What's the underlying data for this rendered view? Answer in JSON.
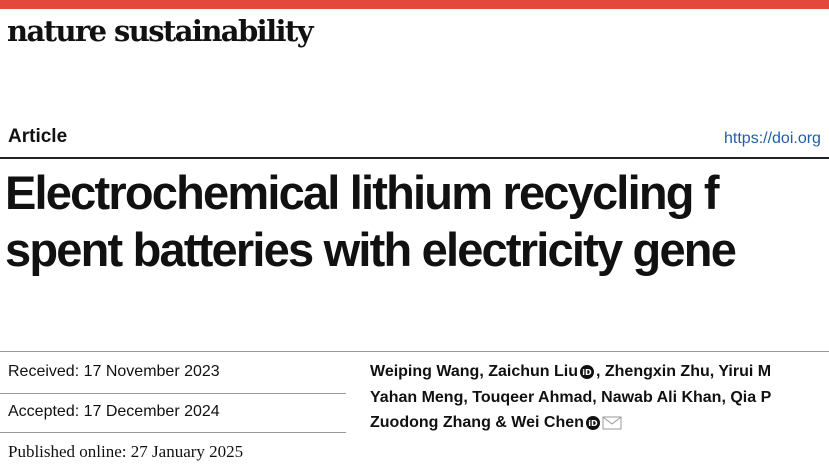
{
  "header": {
    "journal": "nature sustainability",
    "article_type": "Article",
    "doi": "https://doi.org"
  },
  "title_lines": [
    "Electrochemical lithium recycling f",
    "spent batteries with electricity gene"
  ],
  "dates": [
    "Received: 17 November 2023",
    "Accepted: 17 December 2024",
    "Published online: 27 January 2025"
  ],
  "authors": [
    [
      "Weiping Wang, Zaichun Liu",
      ", Zhengxin Zhu, Yirui M"
    ],
    [
      "Yahan Meng, Touqeer Ahmad, Nawab Ali Khan, Qia P"
    ],
    [
      "Zuodong Zhang & Wei Chen"
    ]
  ]
}
